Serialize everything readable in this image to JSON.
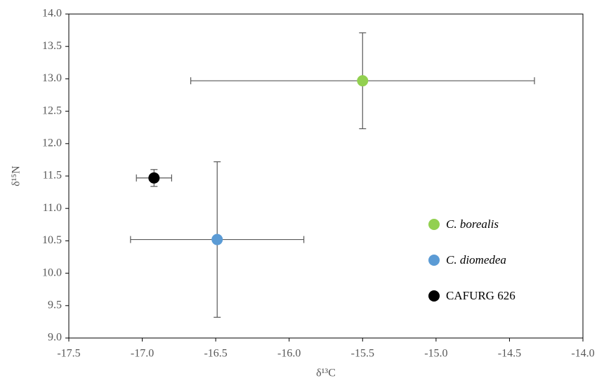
{
  "chart_data": {
    "type": "scatter",
    "x_label": "δ¹³C",
    "y_label": "δ¹⁵N",
    "xlim": [
      -17.5,
      -14.0
    ],
    "xticks": [
      -17.5,
      {
        "value": -17.0,
        "label": "-17.0"
      },
      -16.5,
      {
        "value": -16.0,
        "label": "-16.0"
      },
      -15.5,
      {
        "value": -15.0,
        "label": "-15.0"
      },
      -14.5,
      {
        "value": -14.0,
        "label": "-14.0"
      }
    ],
    "ylim": [
      9.0,
      14.0
    ],
    "yticks": [
      {
        "value": 9.0,
        "label": "9.0"
      },
      9.5,
      {
        "value": 10.0,
        "label": "10.0"
      },
      10.5,
      {
        "value": 11.0,
        "label": "11.0"
      },
      11.5,
      {
        "value": 12.0,
        "label": "12.0"
      },
      12.5,
      {
        "value": 13.0,
        "label": "13.0"
      },
      13.5,
      {
        "value": 14.0,
        "label": "14.0"
      }
    ],
    "legend": "right",
    "series": [
      {
        "name": "C. borealis",
        "italic": true,
        "color": "#92d050",
        "x": [
          -15.5
        ],
        "y": [
          12.97
        ],
        "xerr": [
          1.17
        ],
        "yerr": [
          0.74
        ]
      },
      {
        "name": "C. diomedea",
        "italic": true,
        "color": "#5b9bd5",
        "x": [
          -16.49
        ],
        "y": [
          10.52
        ],
        "xerr": [
          0.59
        ],
        "yerr": [
          1.2
        ]
      },
      {
        "name": "CAFURG 626",
        "italic": false,
        "color": "#000000",
        "x": [
          -16.92
        ],
        "y": [
          11.47
        ],
        "xerr": [
          0.12
        ],
        "yerr": [
          0.13
        ]
      }
    ]
  }
}
